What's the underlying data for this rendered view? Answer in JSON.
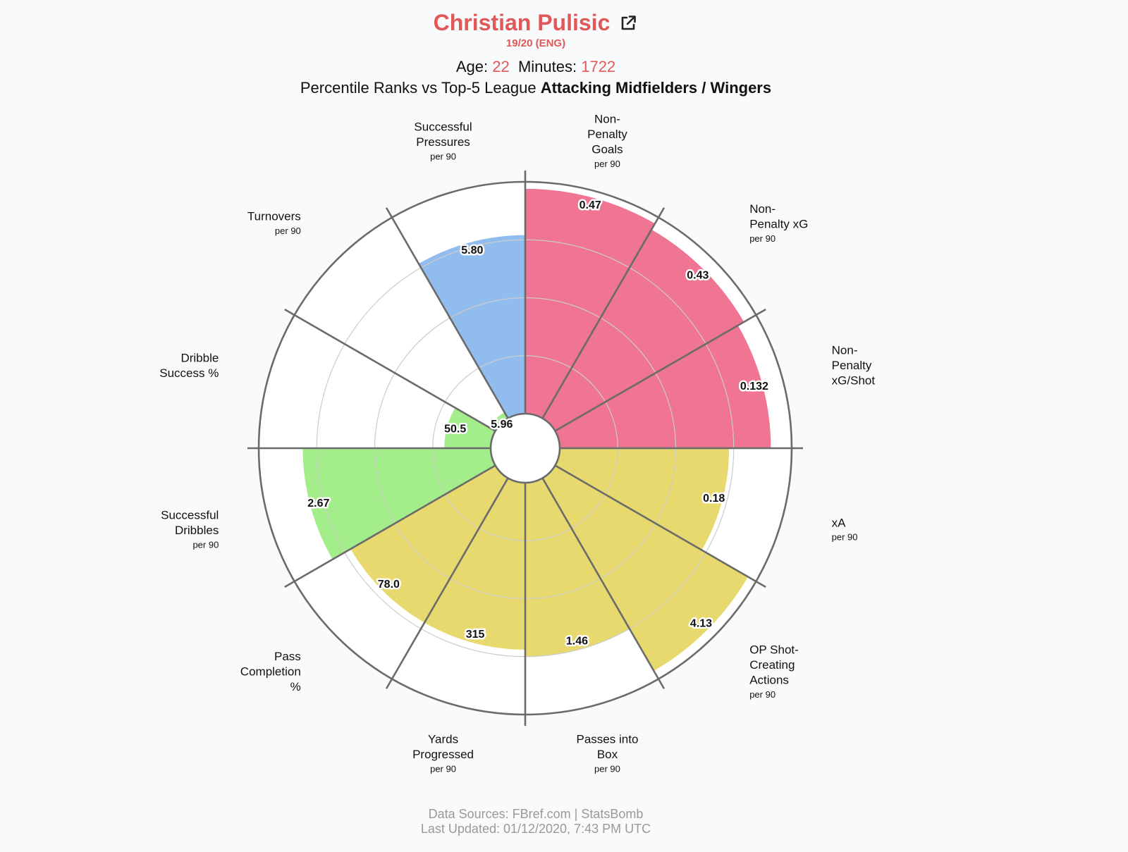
{
  "header": {
    "player_name": "Christian Pulisic",
    "season": "19/20 (ENG)",
    "age_label": "Age:",
    "age": "22",
    "minutes_label": "Minutes:",
    "minutes": "1722",
    "subtitle_prefix": "Percentile Ranks vs Top-5 League",
    "subtitle_group": "Attacking Midfielders / Wingers"
  },
  "footer": {
    "sources": "Data Sources: FBref.com | StatsBomb",
    "updated": "Last Updated: 01/12/2020, 7:43 PM UTC"
  },
  "icons": {
    "external_link": "external-link-icon"
  },
  "colors": {
    "attacking": "#f07592",
    "passing": "#e8d96e",
    "possession": "#a3ed8a",
    "defending": "#90bdee",
    "title_accent": "#e05858"
  },
  "chart_data": {
    "type": "polar-bar",
    "value_scale": "percentile",
    "rlim": [
      0,
      100
    ],
    "grid": true,
    "categories": [
      {
        "name": [
          "Non-",
          "Penalty",
          "Goals"
        ],
        "unit": "per 90",
        "value_label": "0.47",
        "percentile": 97,
        "group": "attacking"
      },
      {
        "name": [
          "Non-",
          "Penalty xG"
        ],
        "unit": "per 90",
        "value_label": "0.43",
        "percentile": 94,
        "group": "attacking"
      },
      {
        "name": [
          "Non-",
          "Penalty",
          "xG/Shot"
        ],
        "unit": "",
        "value_label": "0.132",
        "percentile": 91,
        "group": "attacking"
      },
      {
        "name": [
          "xA"
        ],
        "unit": "per 90",
        "value_label": "0.18",
        "percentile": 73,
        "group": "passing"
      },
      {
        "name": [
          "OP Shot-",
          "Creating",
          "Actions"
        ],
        "unit": "per 90",
        "value_label": "4.13",
        "percentile": 96,
        "group": "passing"
      },
      {
        "name": [
          "Passes into",
          "Box"
        ],
        "unit": "per 90",
        "value_label": "1.46",
        "percentile": 75,
        "group": "passing"
      },
      {
        "name": [
          "Yards",
          "Progressed"
        ],
        "unit": "per 90",
        "value_label": "315",
        "percentile": 72,
        "group": "passing"
      },
      {
        "name": [
          "Pass",
          "Completion",
          "%"
        ],
        "unit": "",
        "value_label": "78.0",
        "percentile": 72,
        "group": "passing"
      },
      {
        "name": [
          "Successful",
          "Dribbles"
        ],
        "unit": "per 90",
        "value_label": "2.67",
        "percentile": 81,
        "group": "possession"
      },
      {
        "name": [
          "Dribble",
          "Success %"
        ],
        "unit": "",
        "value_label": "50.5",
        "percentile": 20,
        "group": "possession"
      },
      {
        "name": [
          "Turnovers"
        ],
        "unit": "per 90",
        "value_label": "5.96",
        "percentile": 3,
        "group": "possession"
      },
      {
        "name": [
          "Successful",
          "Pressures"
        ],
        "unit": "per 90",
        "value_label": "5.80",
        "percentile": 77,
        "group": "defending"
      }
    ]
  }
}
